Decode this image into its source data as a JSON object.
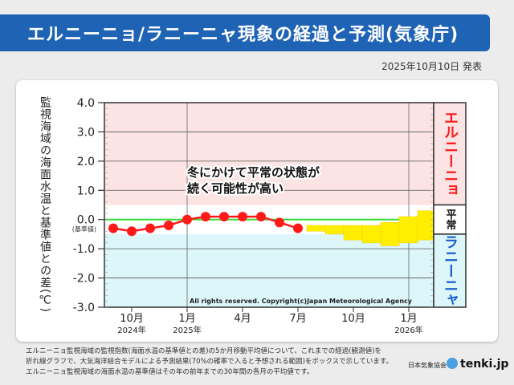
{
  "header": {
    "title": "エルニーニョ/ラニーニャ現象の経過と予測(気象庁)",
    "date": "2025年10月10日 発表"
  },
  "chart_data": {
    "type": "line",
    "ylabel": "監視海域の海面水温と基準値との差(℃)",
    "ylim": [
      -3.0,
      4.0
    ],
    "yticks": [
      "4.0",
      "3.0",
      "2.0",
      "1.0",
      "0.0",
      "-1.0",
      "-2.0",
      "-3.0"
    ],
    "baseline_label": "(基準値)",
    "grid": true,
    "xticks": [
      {
        "month": "2024-10",
        "label": "10月",
        "year": "2024年"
      },
      {
        "month": "2025-01",
        "label": "1月",
        "year": "2025年"
      },
      {
        "month": "2025-04",
        "label": "4月",
        "year": ""
      },
      {
        "month": "2025-07",
        "label": "7月",
        "year": ""
      },
      {
        "month": "2025-10",
        "label": "10月",
        "year": ""
      },
      {
        "month": "2026-01",
        "label": "1月",
        "year": "2026年"
      }
    ],
    "xlim": [
      "2024-08",
      "2026-02"
    ],
    "observed": {
      "x": [
        "2024-09",
        "2024-10",
        "2024-11",
        "2024-12",
        "2025-01",
        "2025-02",
        "2025-03",
        "2025-04",
        "2025-05",
        "2025-06",
        "2025-07"
      ],
      "y": [
        -0.3,
        -0.4,
        -0.3,
        -0.2,
        0.0,
        0.1,
        0.1,
        0.1,
        0.1,
        -0.1,
        -0.3
      ],
      "color": "#ff1a1a"
    },
    "forecast_range": {
      "x": [
        "2025-08",
        "2025-09",
        "2025-10",
        "2025-11",
        "2025-12",
        "2026-01",
        "2026-02"
      ],
      "high": [
        -0.2,
        -0.2,
        -0.2,
        -0.2,
        -0.1,
        0.1,
        0.3
      ],
      "low": [
        -0.4,
        -0.5,
        -0.7,
        -0.8,
        -0.9,
        -0.8,
        -0.7
      ],
      "color": "#ffee00"
    },
    "bands": [
      {
        "label": "エルニーニョ",
        "from": 0.5,
        "to": 4.0,
        "color": "#fde4e4",
        "text_color": "#ff1a1a"
      },
      {
        "label": "平常",
        "from": -0.5,
        "to": 0.5,
        "color": "#ffffff",
        "text_color": "#111111"
      },
      {
        "label": "ラニーニャ",
        "from": -3.0,
        "to": -0.5,
        "color": "#dcf6fa",
        "text_color": "#1a5fd0"
      }
    ],
    "zero_line_color": "#33dd33",
    "annotation": [
      "冬にかけて平常の状態が",
      "続く可能性が高い"
    ],
    "copyright": "All rights reserved. Copyright(c)Japan Meteorological Agency"
  },
  "footer": {
    "lines": [
      "エルニーニョ監視海域の監視指数(海面水温の基準値との差)の5か月移動平均値について、これまでの経過(観測値)を",
      "折れ線グラフで、大気海洋結合モデルによる予測結果(70%の確率で入ると予想される範囲)をボックスで示しています。",
      "エルニーニョ監視海域の海面水温の基準値はその年の前年までの30年間の各月の平均値です。"
    ],
    "org": "日本気象協会",
    "brand": "tenki.jp"
  }
}
